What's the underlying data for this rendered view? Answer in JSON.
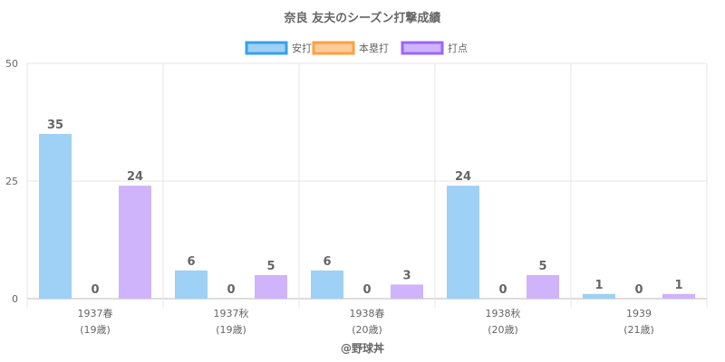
{
  "chart_data": {
    "type": "bar",
    "title": "奈良 友夫のシーズン打撃成績",
    "categories": [
      [
        "1937春",
        "(19歳)"
      ],
      [
        "1937秋",
        "(19歳)"
      ],
      [
        "1938春",
        "(20歳)"
      ],
      [
        "1938秋",
        "(20歳)"
      ],
      [
        "1939",
        "(21歳)"
      ]
    ],
    "series": [
      {
        "name": "安打",
        "values": [
          35,
          6,
          6,
          24,
          1
        ],
        "fill": "#9fd0f5",
        "stroke": "#36a2eb"
      },
      {
        "name": "本塁打",
        "values": [
          0,
          0,
          0,
          0,
          0
        ],
        "fill": "#ffcc99",
        "stroke": "#ff9f40"
      },
      {
        "name": "打点",
        "values": [
          24,
          5,
          3,
          5,
          1
        ],
        "fill": "#cfb3fb",
        "stroke": "#9966ff"
      }
    ],
    "ylim": [
      0,
      50
    ],
    "yticks": [
      0,
      25,
      50
    ],
    "grid": true,
    "legend": "top-center",
    "credit": "@野球丼"
  }
}
